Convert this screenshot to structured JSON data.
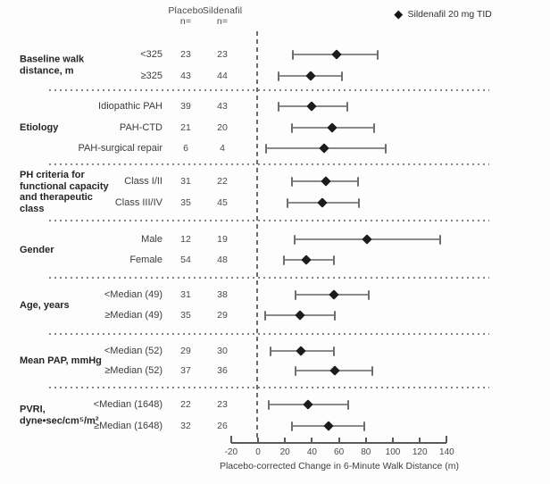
{
  "legend": {
    "label": "Sildenafil 20 mg TID"
  },
  "table_headers": {
    "placebo": "Placebo",
    "sildenafil": "Sildenafil",
    "n_sub": "n="
  },
  "chart_data": {
    "type": "forest",
    "series_name": "Sildenafil 20 mg TID",
    "xlabel": "Placebo-corrected Change in 6-Minute Walk Distance (m)",
    "xlim": [
      -20,
      140
    ],
    "xticks": [
      -20,
      0,
      20,
      40,
      60,
      80,
      100,
      120,
      140
    ],
    "reference_line_x": 0,
    "value_columns": [
      "Placebo n=",
      "Sildenafil n="
    ],
    "groups": [
      {
        "label": "Baseline walk\ndistance, m",
        "rows": [
          {
            "label": "<325",
            "placebo_n": "23",
            "sildenafil_n": "23",
            "estimate": 58,
            "ci": [
              26,
              89
            ]
          },
          {
            "label": "≥325",
            "placebo_n": "43",
            "sildenafil_n": "44",
            "estimate": 39,
            "ci": [
              15,
              62
            ]
          }
        ]
      },
      {
        "label": "Etiology",
        "rows": [
          {
            "label": "Idiopathic PAH",
            "placebo_n": "39",
            "sildenafil_n": "43",
            "estimate": 40,
            "ci": [
              15,
              66
            ]
          },
          {
            "label": "PAH-CTD",
            "placebo_n": "21",
            "sildenafil_n": "20",
            "estimate": 55,
            "ci": [
              25,
              86
            ]
          },
          {
            "label": "PAH-surgical repair",
            "placebo_n": "6",
            "sildenafil_n": "4",
            "estimate": 49,
            "ci": [
              6,
              95
            ]
          }
        ]
      },
      {
        "label": "PH criteria for\nfunctional capacity\nand therapeutic\nclass",
        "rows": [
          {
            "label": "Class I/II",
            "placebo_n": "31",
            "sildenafil_n": "22",
            "estimate": 50,
            "ci": [
              25,
              74
            ]
          },
          {
            "label": "Class III/IV",
            "placebo_n": "35",
            "sildenafil_n": "45",
            "estimate": 48,
            "ci": [
              22,
              75
            ]
          }
        ]
      },
      {
        "label": "Gender",
        "rows": [
          {
            "label": "Male",
            "placebo_n": "12",
            "sildenafil_n": "19",
            "estimate": 81,
            "ci": [
              27,
              135
            ]
          },
          {
            "label": "Female",
            "placebo_n": "54",
            "sildenafil_n": "48",
            "estimate": 36,
            "ci": [
              19,
              56
            ]
          }
        ]
      },
      {
        "label": "Age, years",
        "rows": [
          {
            "label": "<Median (49)",
            "placebo_n": "31",
            "sildenafil_n": "38",
            "estimate": 56,
            "ci": [
              28,
              82
            ]
          },
          {
            "label": "≥Median (49)",
            "placebo_n": "35",
            "sildenafil_n": "29",
            "estimate": 31,
            "ci": [
              5,
              57
            ]
          }
        ]
      },
      {
        "label": "Mean PAP, mmHg",
        "rows": [
          {
            "label": "<Median (52)",
            "placebo_n": "29",
            "sildenafil_n": "30",
            "estimate": 32,
            "ci": [
              9,
              56
            ]
          },
          {
            "label": "≥Median (52)",
            "placebo_n": "37",
            "sildenafil_n": "36",
            "estimate": 57,
            "ci": [
              28,
              85
            ]
          }
        ]
      },
      {
        "label": "PVRI,\ndyne•sec/cm⁵/m²",
        "rows": [
          {
            "label": "<Median (1648)",
            "placebo_n": "22",
            "sildenafil_n": "23",
            "estimate": 37,
            "ci": [
              8,
              67
            ]
          },
          {
            "label": "≥Median (1648)",
            "placebo_n": "32",
            "sildenafil_n": "26",
            "estimate": 52,
            "ci": [
              25,
              79
            ]
          }
        ]
      }
    ]
  },
  "colors": {
    "marker": "#1c1c1c",
    "ci_bar": "#8a8a8a",
    "separator": "#868686",
    "reference_line": "#6b6b6b"
  }
}
